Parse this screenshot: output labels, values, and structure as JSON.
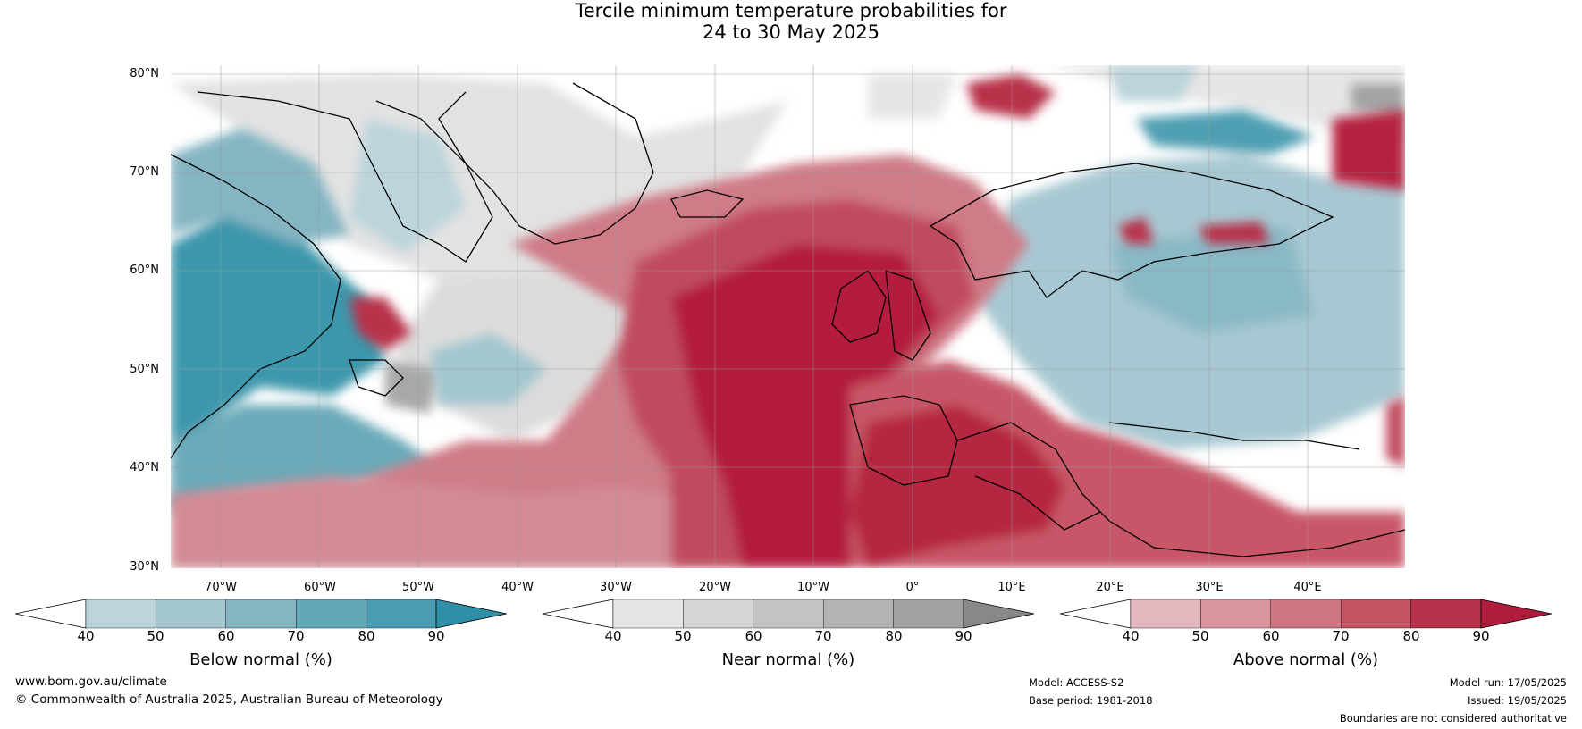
{
  "title": {
    "line1": "Tercile minimum temperature probabilities for",
    "line2": "24 to 30 May 2025"
  },
  "map": {
    "lat_labels": [
      "80°N",
      "70°N",
      "60°N",
      "50°N",
      "40°N",
      "30°N"
    ],
    "lon_labels": [
      "70°W",
      "60°W",
      "50°W",
      "40°W",
      "30°W",
      "20°W",
      "10°W",
      "0°",
      "10°E",
      "20°E",
      "30°E",
      "40°E"
    ]
  },
  "colorbars": [
    {
      "label": "Below normal (%)",
      "ticks": [
        "40",
        "50",
        "60",
        "70",
        "80",
        "90"
      ],
      "colors": [
        "#ffffff",
        "#bcd4dc",
        "#a3c6cf",
        "#85b5c3",
        "#64a8b8",
        "#4a9db0",
        "#2e8fa6"
      ]
    },
    {
      "label": "Near normal (%)",
      "ticks": [
        "40",
        "50",
        "60",
        "70",
        "80",
        "90"
      ],
      "colors": [
        "#ffffff",
        "#e6e6e6",
        "#d6d6d6",
        "#c3c3c3",
        "#b3b3b3",
        "#a2a2a2",
        "#888888"
      ]
    },
    {
      "label": "Above normal (%)",
      "ticks": [
        "40",
        "50",
        "60",
        "70",
        "80",
        "90"
      ],
      "colors": [
        "#ffffff",
        "#e3b9bf",
        "#d9949d",
        "#cd7580",
        "#c25363",
        "#b8314a",
        "#b01c3c"
      ]
    }
  ],
  "footer": {
    "website": "www.bom.gov.au/climate",
    "copyright": "© Commonwealth of Australia 2025, Australian Bureau of Meteorology",
    "model": "Model: ACCESS-S2",
    "base_period": "Base period: 1981-2018",
    "model_run": "Model run: 17/05/2025",
    "issued": "Issued: 19/05/2025",
    "disclaimer": "Boundaries are not considered authoritative"
  }
}
